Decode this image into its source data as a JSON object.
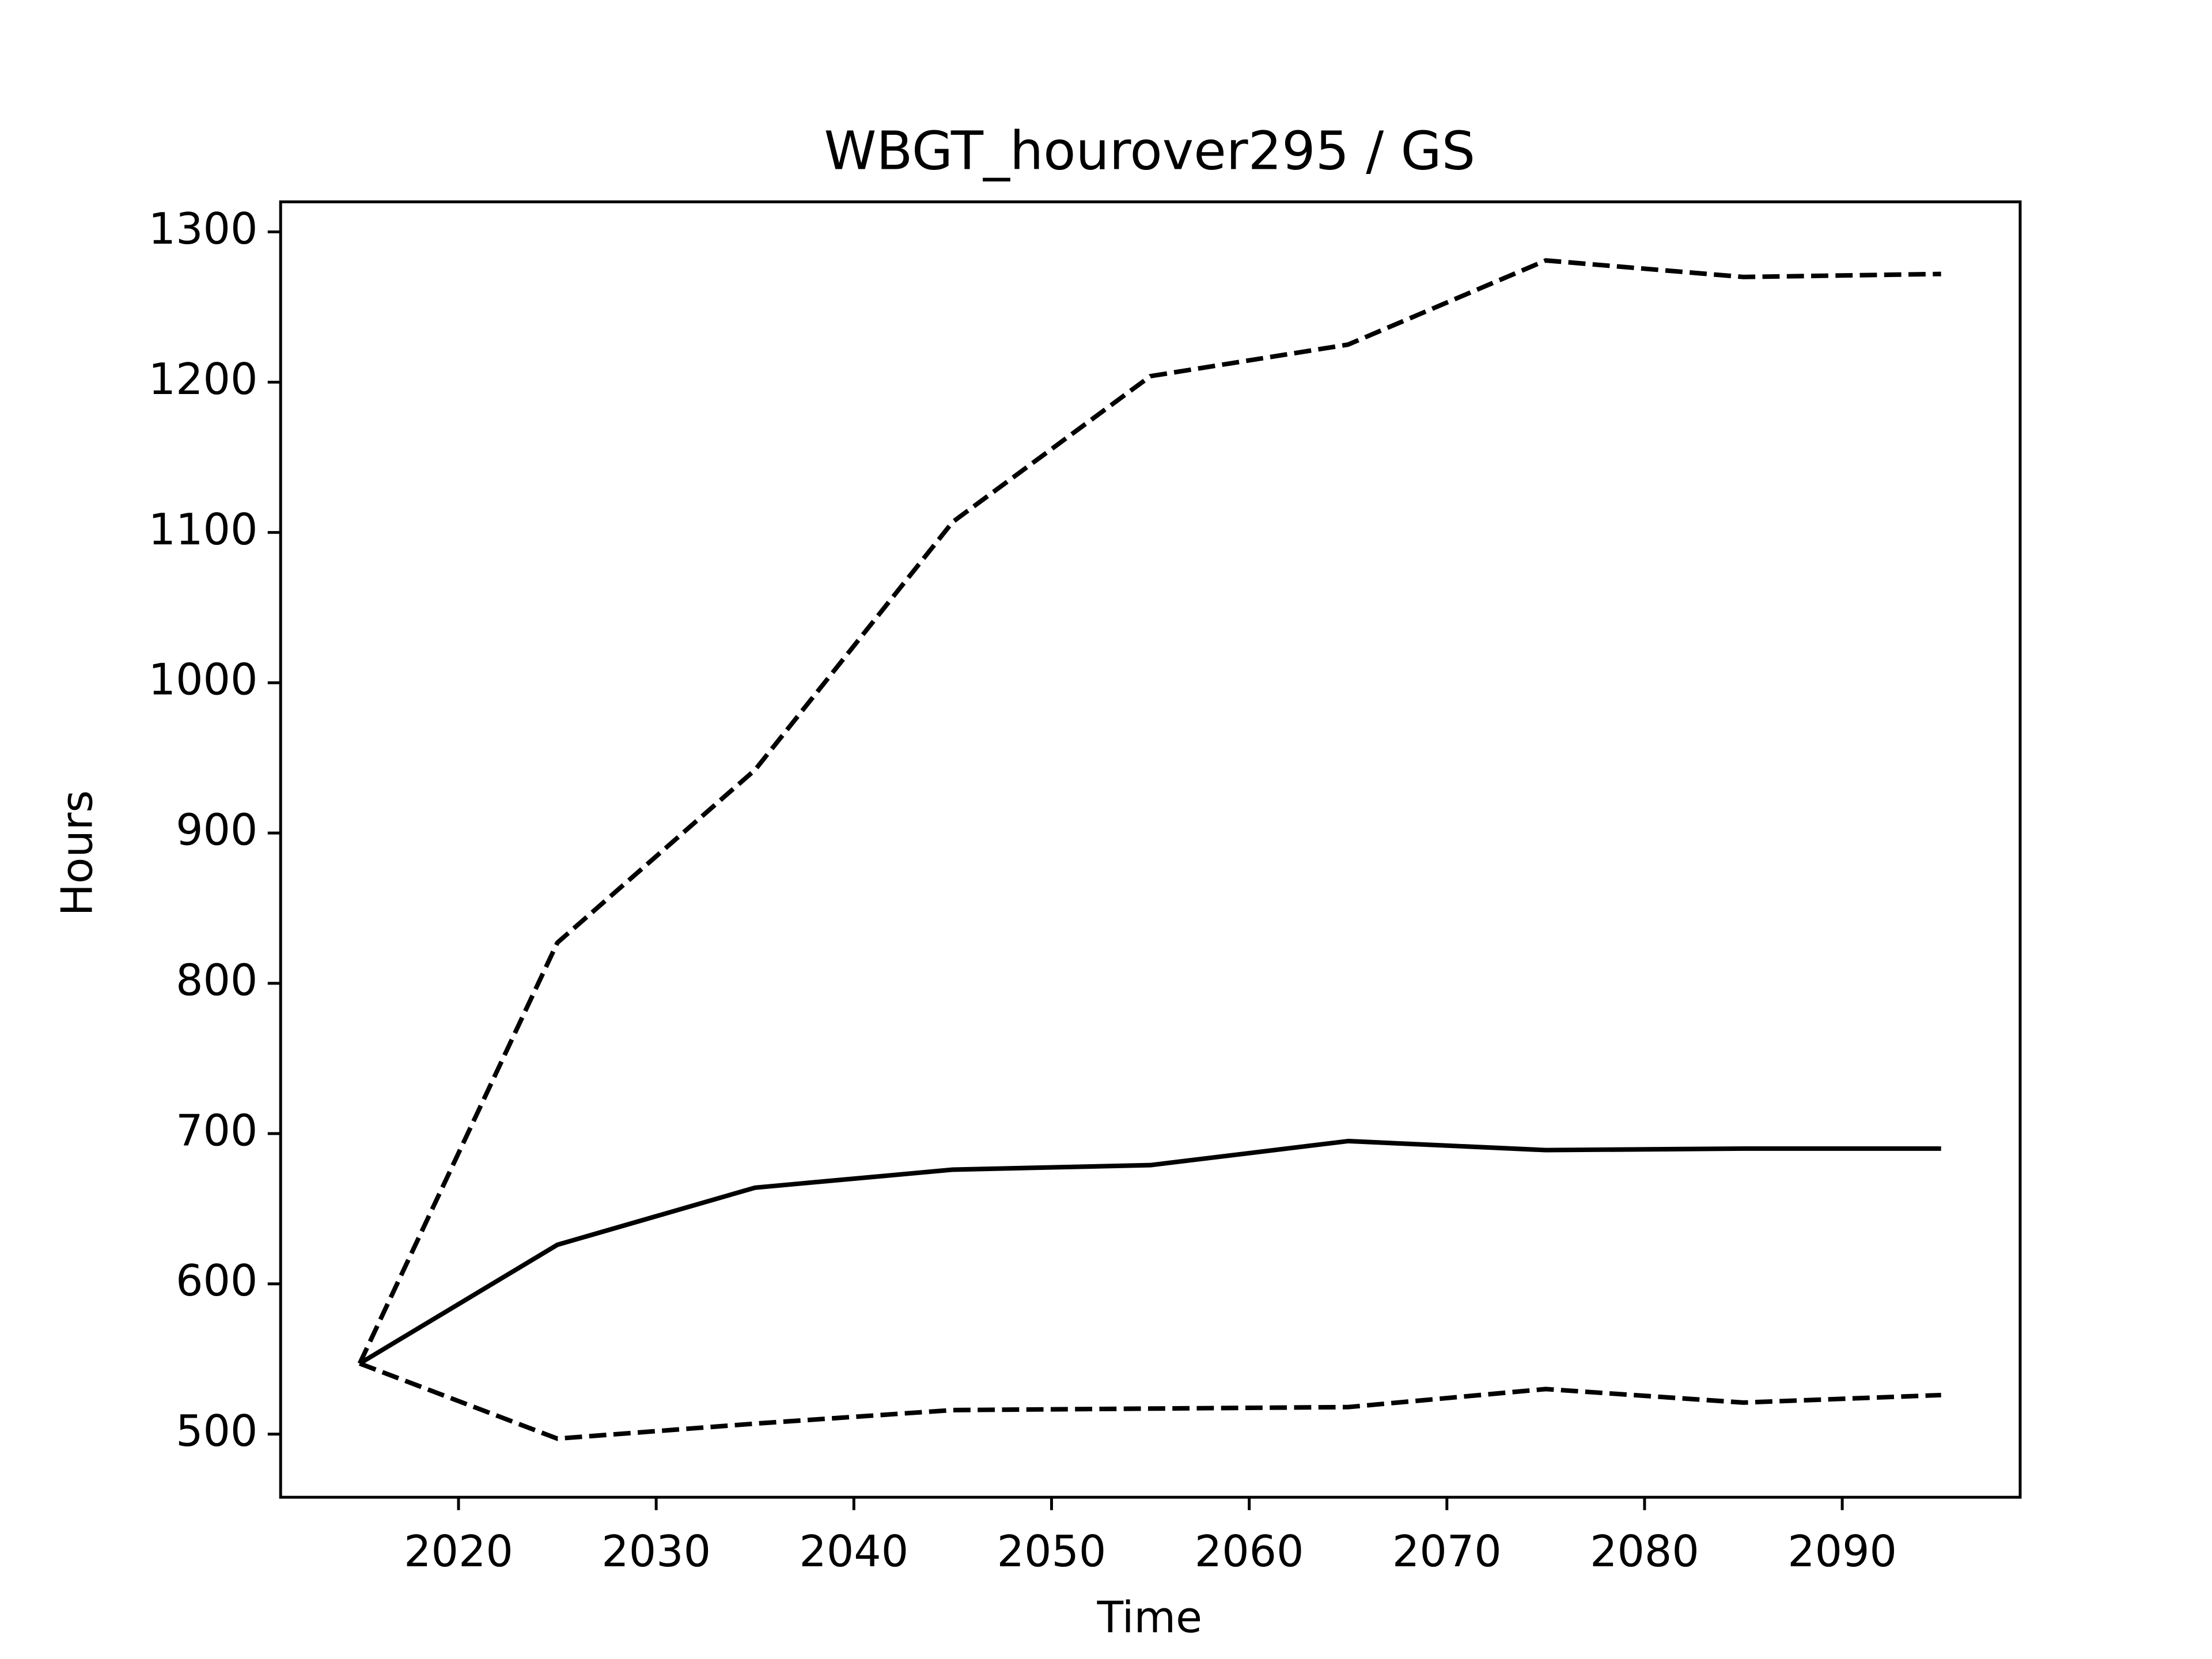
{
  "chart_data": {
    "type": "line",
    "title": "WBGT_hourover295 / GS",
    "xlabel": "Time",
    "ylabel": "Hours",
    "x": [
      2015,
      2025,
      2035,
      2045,
      2055,
      2065,
      2075,
      2085,
      2095
    ],
    "series": [
      {
        "color": "#000000",
        "linestyle": "solid",
        "values": [
          547,
          626,
          664,
          676,
          679,
          695,
          689,
          690,
          690
        ]
      },
      {
        "color": "#000000",
        "linestyle": "dashed",
        "values": [
          547,
          827,
          942,
          1107,
          1204,
          1225,
          1281,
          1270,
          1272
        ]
      },
      {
        "color": "#000000",
        "linestyle": "dashed",
        "values": [
          547,
          497,
          507,
          516,
          517,
          518,
          530,
          521,
          526
        ]
      }
    ],
    "xlim": [
      2011,
      2099
    ],
    "xticks": [
      2020,
      2030,
      2040,
      2050,
      2060,
      2070,
      2080,
      2090
    ],
    "ylim": [
      458,
      1320
    ],
    "yticks": [
      500,
      600,
      700,
      800,
      900,
      1000,
      1100,
      1200,
      1300
    ],
    "grid": false
  }
}
